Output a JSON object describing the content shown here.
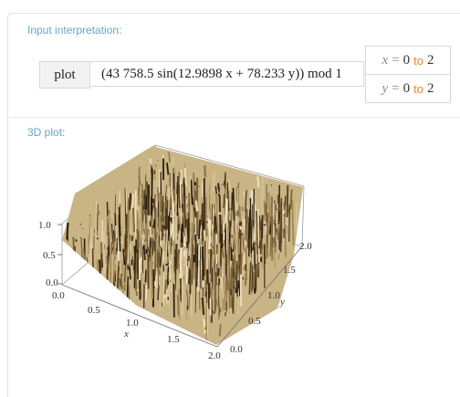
{
  "input_interpretation": {
    "title": "Input interpretation:",
    "command": "plot",
    "expression": "(43 758.5 sin(12.9898 x + 78.233 y)) mod 1",
    "ranges": [
      {
        "var": "x",
        "eq": "=",
        "from": "0",
        "to_word": "to",
        "to": "2"
      },
      {
        "var": "y",
        "eq": "=",
        "from": "0",
        "to_word": "to",
        "to": "2"
      }
    ]
  },
  "plot_pod": {
    "title": "3D plot:",
    "z_ticks": [
      "1.0",
      "0.5",
      "0.0"
    ],
    "x_ticks": [
      "0.0",
      "0.5",
      "1.0",
      "1.5",
      "2.0"
    ],
    "y_ticks": [
      "0.0",
      "0.5",
      "1.0",
      "1.5",
      "2.0"
    ],
    "x_label": "x",
    "y_label": "y"
  },
  "colors": {
    "title_blue": "#6aa4c8",
    "range_orange": "#e08a30",
    "surface_light": "#d8c49a",
    "surface_dark": "#3a2a16"
  }
}
